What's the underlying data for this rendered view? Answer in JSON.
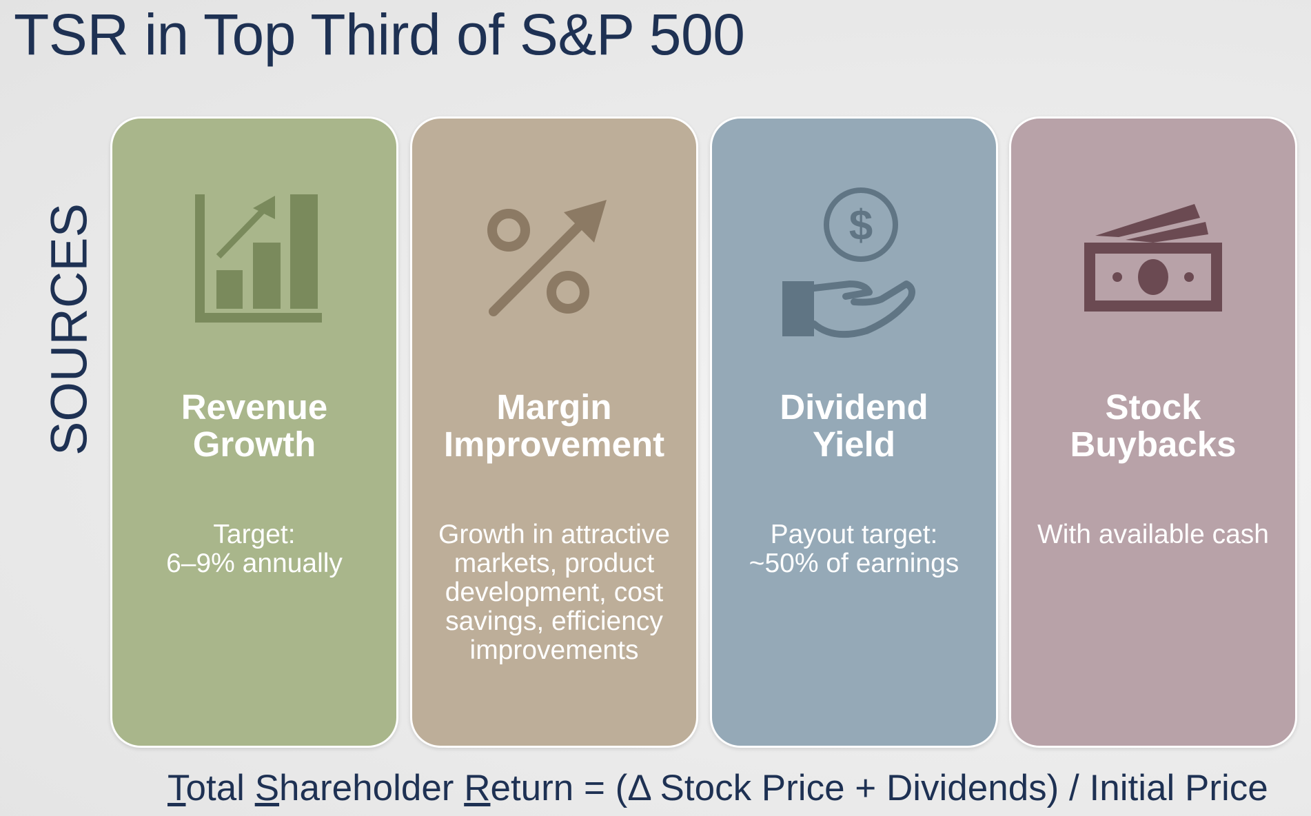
{
  "title": "TSR in Top Third of S&P 500",
  "side_label": "SOURCES",
  "cards": [
    {
      "icon": "bar-chart-up-arrow-icon",
      "title_lines": [
        "Revenue",
        "Growth"
      ],
      "desc_lines": [
        "Target:",
        "6–9% annually"
      ],
      "color": "#a9b68b",
      "icon_color": "#7a8a5c"
    },
    {
      "icon": "percent-up-arrow-icon",
      "title_lines": [
        "Margin",
        "Improvement"
      ],
      "desc_lines": [
        "Growth in attractive",
        "markets, product",
        "development, cost",
        "savings, efficiency",
        "improvements"
      ],
      "color": "#bdae99",
      "icon_color": "#8c7a64"
    },
    {
      "icon": "hand-dollar-coin-icon",
      "title_lines": [
        "Dividend",
        "Yield"
      ],
      "desc_lines": [
        "Payout target:",
        "~50% of earnings"
      ],
      "color": "#95a9b7",
      "icon_color": "#607584"
    },
    {
      "icon": "banknotes-icon",
      "title_lines": [
        "Stock",
        "Buybacks"
      ],
      "desc_lines": [
        "With available cash"
      ],
      "color": "#b8a2a8",
      "icon_color": "#6b4a52"
    }
  ],
  "formula": {
    "t_initial": "T",
    "t_rest": "otal ",
    "s_initial": "S",
    "s_rest": "hareholder ",
    "r_initial": "R",
    "r_rest": "eturn = (Δ Stock Price + Dividends) / Initial Price"
  }
}
